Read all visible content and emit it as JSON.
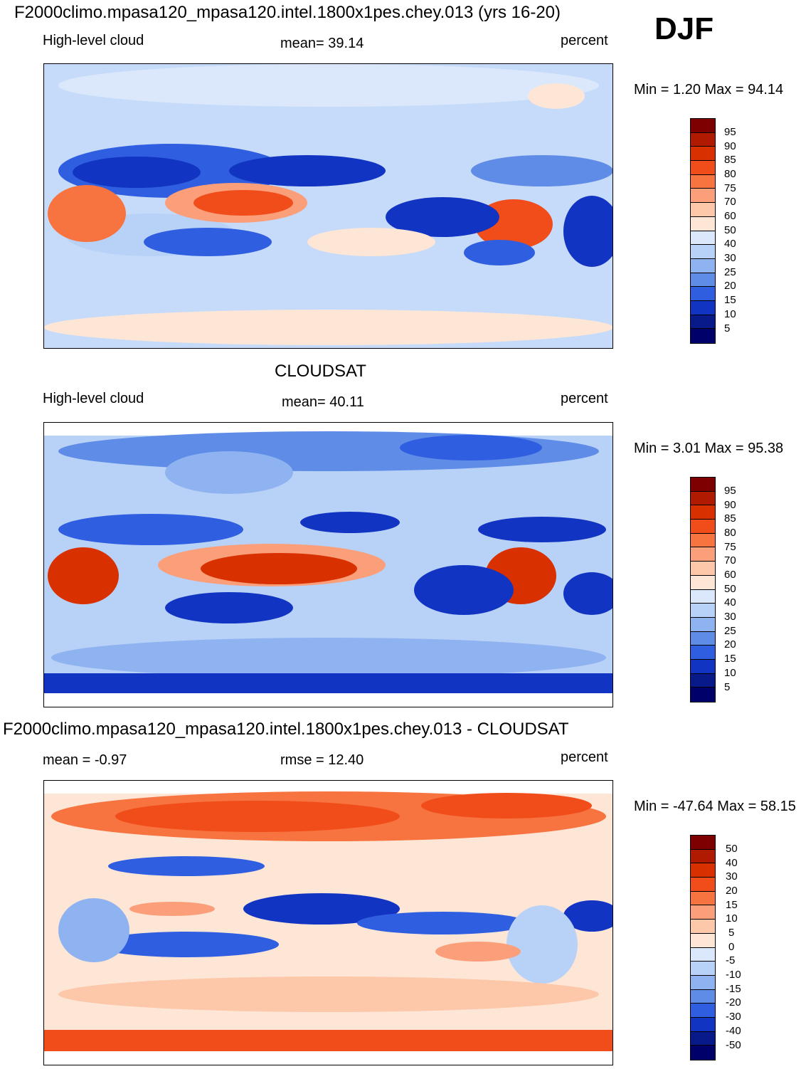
{
  "season": "DJF",
  "panels": [
    {
      "top_title": "F2000climo.mpasa120_mpasa120.intel.1800x1pes.chey.013 (yrs 16-20)",
      "left": "High-level cloud",
      "center": "mean=  39.14",
      "right": "percent",
      "minmax": "Min =    1.20 Max =  94.14",
      "levels": [
        "95",
        "90",
        "85",
        "80",
        "75",
        "70",
        "60",
        "50",
        "40",
        "30",
        "25",
        "20",
        "15",
        "10",
        "5"
      ]
    },
    {
      "top_title": "CLOUDSAT",
      "left": "High-level cloud",
      "center": "mean=  40.11",
      "right": "percent",
      "minmax": "Min =    3.01 Max =  95.38",
      "levels": [
        "95",
        "90",
        "85",
        "80",
        "75",
        "70",
        "60",
        "50",
        "40",
        "30",
        "25",
        "20",
        "15",
        "10",
        "5"
      ]
    },
    {
      "top_title": "F2000climo.mpasa120_mpasa120.intel.1800x1pes.chey.013 - CLOUDSAT",
      "left": "mean =  -0.97",
      "center": "rmse =  12.40",
      "right": "percent",
      "minmax": "Min = -47.64 Max =  58.15",
      "levels": [
        "50",
        "40",
        "30",
        "20",
        "15",
        "10",
        "5",
        "0",
        "-5",
        "-10",
        "-15",
        "-20",
        "-30",
        "-40",
        "-50"
      ]
    }
  ],
  "colors": [
    "#7f0000",
    "#b01a00",
    "#d93000",
    "#f04d1a",
    "#f7733f",
    "#fb9f7a",
    "#fdc7aa",
    "#fde6d6",
    "#dbe8fb",
    "#b8d1f7",
    "#8fb3f1",
    "#5e8ce6",
    "#2f5fe0",
    "#1234c2",
    "#081a8a",
    "#00006b"
  ]
}
